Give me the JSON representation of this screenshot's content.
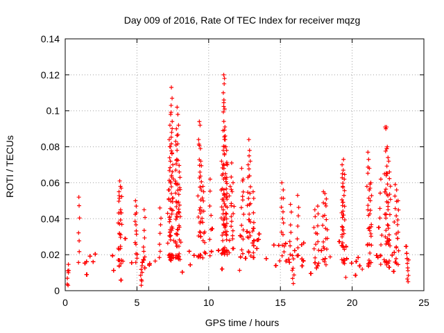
{
  "chart_data": {
    "type": "scatter",
    "title": "Day 009 of 2016, Rate Of TEC Index for receiver mqzg",
    "xlabel": "GPS time / hours",
    "ylabel": "ROTI / TECUs",
    "xlim": [
      0,
      25
    ],
    "ylim": [
      0,
      0.14
    ],
    "xticks": [
      0,
      5,
      10,
      15,
      20,
      25
    ],
    "xtick_labels": [
      "0",
      "5",
      "10",
      "15",
      "20",
      "25"
    ],
    "yticks": [
      0,
      0.02,
      0.04,
      0.06,
      0.08,
      0.1,
      0.12,
      0.14
    ],
    "ytick_labels": [
      "0",
      "0.02",
      "0.04",
      "0.06",
      "0.08",
      "0.1",
      "0.12",
      "0.14"
    ],
    "grid": true,
    "marker": "+",
    "series": [
      {
        "name": "ROTI",
        "color": "#ff0000",
        "baseline_profile": {
          "x": [
            0,
            1,
            2,
            3,
            4,
            5,
            6,
            7,
            8,
            9,
            10,
            11,
            12,
            13,
            14,
            15,
            16,
            17,
            18,
            19,
            20,
            21,
            22,
            23,
            24
          ],
          "median": [
            0.014,
            0.015,
            0.015,
            0.016,
            0.017,
            0.016,
            0.015,
            0.018,
            0.019,
            0.019,
            0.02,
            0.022,
            0.022,
            0.021,
            0.021,
            0.02,
            0.018,
            0.017,
            0.016,
            0.016,
            0.015,
            0.016,
            0.016,
            0.016,
            0.015
          ],
          "spread": [
            0.008,
            0.009,
            0.01,
            0.01,
            0.011,
            0.01,
            0.01,
            0.012,
            0.012,
            0.012,
            0.013,
            0.014,
            0.014,
            0.013,
            0.013,
            0.012,
            0.011,
            0.011,
            0.01,
            0.01,
            0.01,
            0.011,
            0.011,
            0.011,
            0.01
          ]
        },
        "notable_points": [
          {
            "x": 0.95,
            "y": 0.052
          },
          {
            "x": 3.8,
            "y": 0.061
          },
          {
            "x": 3.85,
            "y": 0.058
          },
          {
            "x": 3.75,
            "y": 0.055
          },
          {
            "x": 3.9,
            "y": 0.057
          },
          {
            "x": 4.9,
            "y": 0.05
          },
          {
            "x": 4.95,
            "y": 0.047
          },
          {
            "x": 5.5,
            "y": 0.045
          },
          {
            "x": 6.6,
            "y": 0.046
          },
          {
            "x": 7.2,
            "y": 0.056
          },
          {
            "x": 7.25,
            "y": 0.084
          },
          {
            "x": 7.3,
            "y": 0.092
          },
          {
            "x": 7.35,
            "y": 0.098
          },
          {
            "x": 7.4,
            "y": 0.113
          },
          {
            "x": 7.45,
            "y": 0.107
          },
          {
            "x": 7.38,
            "y": 0.103
          },
          {
            "x": 7.42,
            "y": 0.088
          },
          {
            "x": 7.5,
            "y": 0.07
          },
          {
            "x": 7.33,
            "y": 0.08
          },
          {
            "x": 7.8,
            "y": 0.102
          },
          {
            "x": 7.85,
            "y": 0.098
          },
          {
            "x": 7.9,
            "y": 0.092
          },
          {
            "x": 7.75,
            "y": 0.09
          },
          {
            "x": 7.7,
            "y": 0.083
          },
          {
            "x": 7.72,
            "y": 0.081
          },
          {
            "x": 7.95,
            "y": 0.066
          },
          {
            "x": 8.0,
            "y": 0.063
          },
          {
            "x": 7.85,
            "y": 0.059
          },
          {
            "x": 9.35,
            "y": 0.094
          },
          {
            "x": 9.4,
            "y": 0.092
          },
          {
            "x": 9.3,
            "y": 0.084
          },
          {
            "x": 9.42,
            "y": 0.079
          },
          {
            "x": 9.45,
            "y": 0.072
          },
          {
            "x": 9.6,
            "y": 0.058
          },
          {
            "x": 9.65,
            "y": 0.055
          },
          {
            "x": 10.1,
            "y": 0.062
          },
          {
            "x": 10.9,
            "y": 0.072
          },
          {
            "x": 11.0,
            "y": 0.065
          },
          {
            "x": 11.05,
            "y": 0.12
          },
          {
            "x": 11.1,
            "y": 0.118
          },
          {
            "x": 11.08,
            "y": 0.115
          },
          {
            "x": 11.02,
            "y": 0.11
          },
          {
            "x": 11.06,
            "y": 0.106
          },
          {
            "x": 11.12,
            "y": 0.101
          },
          {
            "x": 11.0,
            "y": 0.089
          },
          {
            "x": 11.15,
            "y": 0.084
          },
          {
            "x": 11.2,
            "y": 0.08
          },
          {
            "x": 11.25,
            "y": 0.078
          },
          {
            "x": 11.3,
            "y": 0.07
          },
          {
            "x": 11.2,
            "y": 0.062
          },
          {
            "x": 11.6,
            "y": 0.071
          },
          {
            "x": 11.7,
            "y": 0.06
          },
          {
            "x": 11.5,
            "y": 0.058
          },
          {
            "x": 12.3,
            "y": 0.068
          },
          {
            "x": 12.4,
            "y": 0.062
          },
          {
            "x": 12.8,
            "y": 0.084
          },
          {
            "x": 12.85,
            "y": 0.078
          },
          {
            "x": 12.9,
            "y": 0.072
          },
          {
            "x": 12.75,
            "y": 0.07
          },
          {
            "x": 13.1,
            "y": 0.055
          },
          {
            "x": 15.1,
            "y": 0.06
          },
          {
            "x": 15.2,
            "y": 0.056
          },
          {
            "x": 15.7,
            "y": 0.048
          },
          {
            "x": 16.2,
            "y": 0.053
          },
          {
            "x": 17.4,
            "y": 0.045
          },
          {
            "x": 17.6,
            "y": 0.047
          },
          {
            "x": 18.0,
            "y": 0.055
          },
          {
            "x": 18.1,
            "y": 0.054
          },
          {
            "x": 18.2,
            "y": 0.051
          },
          {
            "x": 19.3,
            "y": 0.07
          },
          {
            "x": 19.4,
            "y": 0.073
          },
          {
            "x": 19.38,
            "y": 0.067
          },
          {
            "x": 19.32,
            "y": 0.065
          },
          {
            "x": 19.45,
            "y": 0.062
          },
          {
            "x": 19.35,
            "y": 0.058
          },
          {
            "x": 21.1,
            "y": 0.077
          },
          {
            "x": 21.15,
            "y": 0.073
          },
          {
            "x": 21.2,
            "y": 0.068
          },
          {
            "x": 21.3,
            "y": 0.06
          },
          {
            "x": 21.25,
            "y": 0.057
          },
          {
            "x": 22.3,
            "y": 0.091
          },
          {
            "x": 22.4,
            "y": 0.091
          },
          {
            "x": 22.35,
            "y": 0.09
          },
          {
            "x": 22.45,
            "y": 0.08
          },
          {
            "x": 22.5,
            "y": 0.074
          },
          {
            "x": 22.55,
            "y": 0.072
          },
          {
            "x": 22.6,
            "y": 0.066
          },
          {
            "x": 22.38,
            "y": 0.064
          },
          {
            "x": 22.0,
            "y": 0.062
          },
          {
            "x": 23.0,
            "y": 0.059
          },
          {
            "x": 23.1,
            "y": 0.056
          },
          {
            "x": 23.2,
            "y": 0.05
          },
          {
            "x": 0.2,
            "y": 0.003
          },
          {
            "x": 5.3,
            "y": 0.003
          },
          {
            "x": 15.9,
            "y": 0.004
          },
          {
            "x": 23.9,
            "y": 0.005
          }
        ]
      }
    ]
  }
}
